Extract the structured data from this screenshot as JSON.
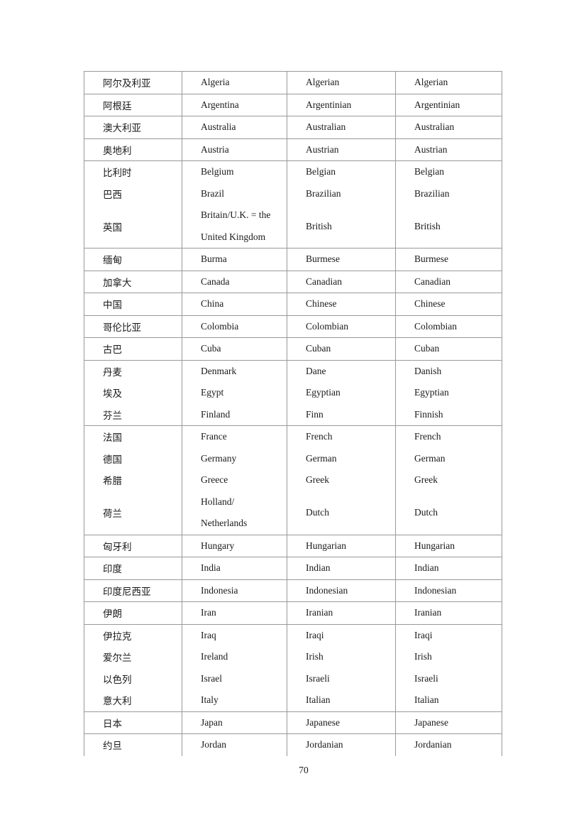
{
  "page": {
    "number": "70",
    "background_color": "#ffffff",
    "text_color": "#1a1a1a",
    "table_border_color": "#999999"
  },
  "table": {
    "columns": [
      "chinese-name",
      "country-name",
      "person-noun",
      "adjective"
    ],
    "groups": [
      {
        "entries": [
          {
            "cn": "阿尔及利亚",
            "country": [
              "Algeria"
            ],
            "person": "Algerian",
            "adj": "Algerian"
          }
        ]
      },
      {
        "entries": [
          {
            "cn": "阿根廷",
            "country": [
              "Argentina"
            ],
            "person": "Argentinian",
            "adj": "Argentinian"
          }
        ]
      },
      {
        "entries": [
          {
            "cn": "澳大利亚",
            "country": [
              "Australia"
            ],
            "person": "Australian",
            "adj": "Australian"
          }
        ]
      },
      {
        "entries": [
          {
            "cn": "奥地利",
            "country": [
              "Austria"
            ],
            "person": "Austrian",
            "adj": "Austrian"
          }
        ]
      },
      {
        "entries": [
          {
            "cn": "比利时",
            "country": [
              "Belgium"
            ],
            "person": "Belgian",
            "adj": "Belgian"
          },
          {
            "cn": "巴西",
            "country": [
              "Brazil"
            ],
            "person": "Brazilian",
            "adj": "Brazilian"
          },
          {
            "cn": "英国",
            "country": [
              "Britain/U.K. = the",
              "United Kingdom"
            ],
            "person": "British",
            "adj": "British"
          }
        ]
      },
      {
        "entries": [
          {
            "cn": "缅甸",
            "country": [
              "Burma"
            ],
            "person": "Burmese",
            "adj": "Burmese"
          }
        ]
      },
      {
        "entries": [
          {
            "cn": "加拿大",
            "country": [
              "Canada"
            ],
            "person": "Canadian",
            "adj": "Canadian"
          }
        ]
      },
      {
        "entries": [
          {
            "cn": "中国",
            "country": [
              "China"
            ],
            "person": "Chinese",
            "adj": "Chinese"
          }
        ]
      },
      {
        "entries": [
          {
            "cn": "哥伦比亚",
            "country": [
              "Colombia"
            ],
            "person": "Colombian",
            "adj": "Colombian"
          }
        ]
      },
      {
        "entries": [
          {
            "cn": "古巴",
            "country": [
              "Cuba"
            ],
            "person": "Cuban",
            "adj": "Cuban"
          }
        ]
      },
      {
        "entries": [
          {
            "cn": "丹麦",
            "country": [
              "Denmark"
            ],
            "person": "Dane",
            "adj": "Danish"
          },
          {
            "cn": "埃及",
            "country": [
              "Egypt"
            ],
            "person": "Egyptian",
            "adj": "Egyptian"
          },
          {
            "cn": "芬兰",
            "country": [
              "Finland"
            ],
            "person": "Finn",
            "adj": "Finnish"
          }
        ]
      },
      {
        "entries": [
          {
            "cn": "法国",
            "country": [
              "France"
            ],
            "person": "French",
            "adj": "French"
          },
          {
            "cn": "德国",
            "country": [
              "Germany"
            ],
            "person": "German",
            "adj": "German"
          },
          {
            "cn": "希腊",
            "country": [
              "Greece"
            ],
            "person": "Greek",
            "adj": "Greek"
          },
          {
            "cn": "荷兰",
            "country": [
              "Holland/",
              "Netherlands"
            ],
            "person": "Dutch",
            "adj": "Dutch"
          }
        ]
      },
      {
        "entries": [
          {
            "cn": "匈牙利",
            "country": [
              "Hungary"
            ],
            "person": "Hungarian",
            "adj": "Hungarian"
          }
        ]
      },
      {
        "entries": [
          {
            "cn": "印度",
            "country": [
              "India"
            ],
            "person": "Indian",
            "adj": "Indian"
          }
        ]
      },
      {
        "entries": [
          {
            "cn": "印度尼西亚",
            "country": [
              "Indonesia"
            ],
            "person": "Indonesian",
            "adj": "Indonesian"
          }
        ]
      },
      {
        "entries": [
          {
            "cn": "伊朗",
            "country": [
              "Iran"
            ],
            "person": "Iranian",
            "adj": "Iranian"
          }
        ]
      },
      {
        "entries": [
          {
            "cn": "伊拉克",
            "country": [
              "Iraq"
            ],
            "person": "Iraqi",
            "adj": "Iraqi"
          },
          {
            "cn": "爱尔兰",
            "country": [
              "Ireland"
            ],
            "person": "Irish",
            "adj": "Irish"
          },
          {
            "cn": "以色列",
            "country": [
              "Israel"
            ],
            "person": "Israeli",
            "adj": "Israeli"
          },
          {
            "cn": "意大利",
            "country": [
              "Italy"
            ],
            "person": "Italian",
            "adj": "Italian"
          }
        ]
      },
      {
        "entries": [
          {
            "cn": "日本",
            "country": [
              "Japan"
            ],
            "person": "Japanese",
            "adj": "Japanese"
          }
        ]
      },
      {
        "entries": [
          {
            "cn": "约旦",
            "country": [
              "Jordan"
            ],
            "person": "Jordanian",
            "adj": "Jordanian"
          }
        ]
      }
    ]
  }
}
